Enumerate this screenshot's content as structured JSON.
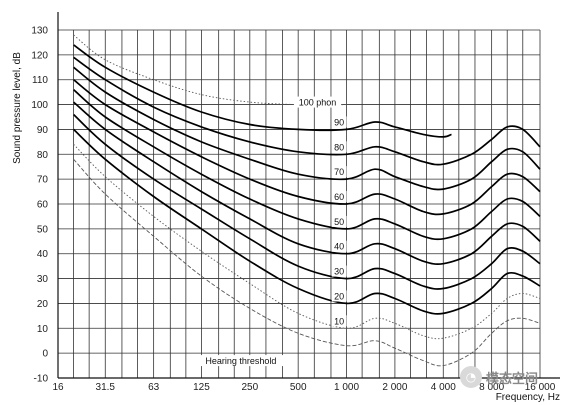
{
  "chart_data": {
    "type": "line",
    "xlabel": "Frequency, Hz",
    "ylabel": "Sound pressure level, dB",
    "x_scale": "log",
    "xlim": [
      16,
      16000
    ],
    "ylim": [
      -10,
      130
    ],
    "grid": true,
    "x_tick_labels": [
      {
        "value": 16,
        "label": "16"
      },
      {
        "value": 31.5,
        "label": "31.5"
      },
      {
        "value": 63,
        "label": "63"
      },
      {
        "value": 125,
        "label": "125"
      },
      {
        "value": 250,
        "label": "250"
      },
      {
        "value": 500,
        "label": "500"
      },
      {
        "value": 1000,
        "label": "1 000"
      },
      {
        "value": 2000,
        "label": "2 000"
      },
      {
        "value": 4000,
        "label": "4 000"
      },
      {
        "value": 8000,
        "label": "8 000"
      },
      {
        "value": 16000,
        "label": "16 000"
      }
    ],
    "y_ticks": [
      -10,
      0,
      10,
      20,
      30,
      40,
      50,
      60,
      70,
      80,
      90,
      100,
      110,
      120,
      130
    ],
    "series": [
      {
        "name": "100 phon",
        "style": "dotted",
        "points": [
          [
            20,
            128
          ],
          [
            31.5,
            118
          ],
          [
            63,
            110
          ],
          [
            125,
            104
          ],
          [
            250,
            101
          ],
          [
            500,
            100
          ],
          [
            1000,
            100
          ]
        ]
      },
      {
        "name": "90",
        "style": "solid",
        "points": [
          [
            20,
            124
          ],
          [
            31.5,
            115
          ],
          [
            63,
            105
          ],
          [
            125,
            97
          ],
          [
            250,
            92
          ],
          [
            500,
            90
          ],
          [
            1000,
            90
          ],
          [
            1500,
            93
          ],
          [
            2000,
            91
          ],
          [
            3000,
            88
          ],
          [
            4000,
            87
          ],
          [
            4500,
            88
          ]
        ]
      },
      {
        "name": "80",
        "style": "solid",
        "points": [
          [
            20,
            119
          ],
          [
            31.5,
            110
          ],
          [
            63,
            99
          ],
          [
            125,
            91
          ],
          [
            250,
            85
          ],
          [
            500,
            81
          ],
          [
            1000,
            80
          ],
          [
            1500,
            83
          ],
          [
            2000,
            81
          ],
          [
            3000,
            77
          ],
          [
            4000,
            76
          ],
          [
            6000,
            80
          ],
          [
            8000,
            86
          ],
          [
            10000,
            91
          ],
          [
            12500,
            90
          ],
          [
            16000,
            83
          ]
        ]
      },
      {
        "name": "70",
        "style": "solid",
        "points": [
          [
            20,
            115
          ],
          [
            31.5,
            105
          ],
          [
            63,
            94
          ],
          [
            125,
            85
          ],
          [
            250,
            78
          ],
          [
            500,
            72
          ],
          [
            1000,
            70
          ],
          [
            1500,
            74
          ],
          [
            2000,
            71
          ],
          [
            3000,
            67
          ],
          [
            4000,
            66
          ],
          [
            6000,
            70
          ],
          [
            8000,
            77
          ],
          [
            10000,
            82
          ],
          [
            12500,
            81
          ],
          [
            16000,
            74
          ]
        ]
      },
      {
        "name": "60",
        "style": "solid",
        "points": [
          [
            20,
            110
          ],
          [
            31.5,
            100
          ],
          [
            63,
            89
          ],
          [
            125,
            79
          ],
          [
            250,
            70
          ],
          [
            500,
            63
          ],
          [
            1000,
            60
          ],
          [
            1500,
            64
          ],
          [
            2000,
            62
          ],
          [
            3000,
            57
          ],
          [
            4000,
            56
          ],
          [
            6000,
            60
          ],
          [
            8000,
            67
          ],
          [
            10000,
            72
          ],
          [
            12500,
            71
          ],
          [
            16000,
            65
          ]
        ]
      },
      {
        "name": "50",
        "style": "solid",
        "points": [
          [
            20,
            106
          ],
          [
            31.5,
            95
          ],
          [
            63,
            83
          ],
          [
            125,
            72
          ],
          [
            250,
            62
          ],
          [
            500,
            54
          ],
          [
            1000,
            50
          ],
          [
            1500,
            54
          ],
          [
            2000,
            52
          ],
          [
            3000,
            47
          ],
          [
            4000,
            46
          ],
          [
            6000,
            50
          ],
          [
            8000,
            57
          ],
          [
            10000,
            62
          ],
          [
            12500,
            61
          ],
          [
            16000,
            55
          ]
        ]
      },
      {
        "name": "40",
        "style": "solid",
        "points": [
          [
            20,
            101
          ],
          [
            31.5,
            90
          ],
          [
            63,
            77
          ],
          [
            125,
            65
          ],
          [
            250,
            54
          ],
          [
            500,
            44
          ],
          [
            1000,
            40
          ],
          [
            1500,
            44
          ],
          [
            2000,
            42
          ],
          [
            3000,
            37
          ],
          [
            4000,
            36
          ],
          [
            6000,
            40
          ],
          [
            8000,
            47
          ],
          [
            10000,
            52
          ],
          [
            12500,
            51
          ],
          [
            16000,
            45
          ]
        ]
      },
      {
        "name": "30",
        "style": "solid",
        "points": [
          [
            20,
            96
          ],
          [
            31.5,
            84
          ],
          [
            63,
            70
          ],
          [
            125,
            58
          ],
          [
            250,
            46
          ],
          [
            500,
            35
          ],
          [
            1000,
            30
          ],
          [
            1500,
            34
          ],
          [
            2000,
            32
          ],
          [
            3000,
            27
          ],
          [
            4000,
            26
          ],
          [
            6000,
            30
          ],
          [
            8000,
            36
          ],
          [
            10000,
            42
          ],
          [
            12500,
            41
          ],
          [
            16000,
            36
          ]
        ]
      },
      {
        "name": "20",
        "style": "solid",
        "points": [
          [
            20,
            90
          ],
          [
            31.5,
            78
          ],
          [
            63,
            63
          ],
          [
            125,
            50
          ],
          [
            250,
            37
          ],
          [
            500,
            26
          ],
          [
            1000,
            20
          ],
          [
            1500,
            24
          ],
          [
            2000,
            22
          ],
          [
            3000,
            17
          ],
          [
            4000,
            16
          ],
          [
            6000,
            20
          ],
          [
            8000,
            26
          ],
          [
            10000,
            32
          ],
          [
            12500,
            31
          ],
          [
            16000,
            27
          ]
        ]
      },
      {
        "name": "10",
        "style": "dotted",
        "points": [
          [
            20,
            84
          ],
          [
            31.5,
            71
          ],
          [
            63,
            55
          ],
          [
            125,
            41
          ],
          [
            250,
            28
          ],
          [
            500,
            16
          ],
          [
            1000,
            10
          ],
          [
            1500,
            14
          ],
          [
            2000,
            12
          ],
          [
            3000,
            7
          ],
          [
            4000,
            6
          ],
          [
            6000,
            10
          ],
          [
            8000,
            16
          ],
          [
            10000,
            22
          ],
          [
            12500,
            24
          ],
          [
            16000,
            22
          ]
        ]
      },
      {
        "name": "Hearing threshold",
        "style": "dashed",
        "points": [
          [
            20,
            78
          ],
          [
            31.5,
            64
          ],
          [
            63,
            47
          ],
          [
            125,
            31
          ],
          [
            250,
            18
          ],
          [
            500,
            8
          ],
          [
            1000,
            3
          ],
          [
            1500,
            5
          ],
          [
            2000,
            2
          ],
          [
            3000,
            -3
          ],
          [
            4000,
            -5
          ],
          [
            6000,
            0
          ],
          [
            8000,
            8
          ],
          [
            10000,
            13
          ],
          [
            12500,
            14
          ],
          [
            16000,
            12
          ]
        ]
      }
    ],
    "annotations": [
      {
        "text": "100 phon",
        "x": 660,
        "y": 100
      },
      {
        "text": "90",
        "x": 900,
        "y": 92
      },
      {
        "text": "80",
        "x": 900,
        "y": 82
      },
      {
        "text": "70",
        "x": 900,
        "y": 72
      },
      {
        "text": "60",
        "x": 900,
        "y": 62
      },
      {
        "text": "50",
        "x": 900,
        "y": 52
      },
      {
        "text": "40",
        "x": 900,
        "y": 42
      },
      {
        "text": "30",
        "x": 900,
        "y": 32
      },
      {
        "text": "20",
        "x": 900,
        "y": 22
      },
      {
        "text": "10",
        "x": 900,
        "y": 12
      },
      {
        "text": "Hearing threshold",
        "x": 220,
        "y": -4
      }
    ]
  },
  "watermark": {
    "text": "模态空间"
  }
}
